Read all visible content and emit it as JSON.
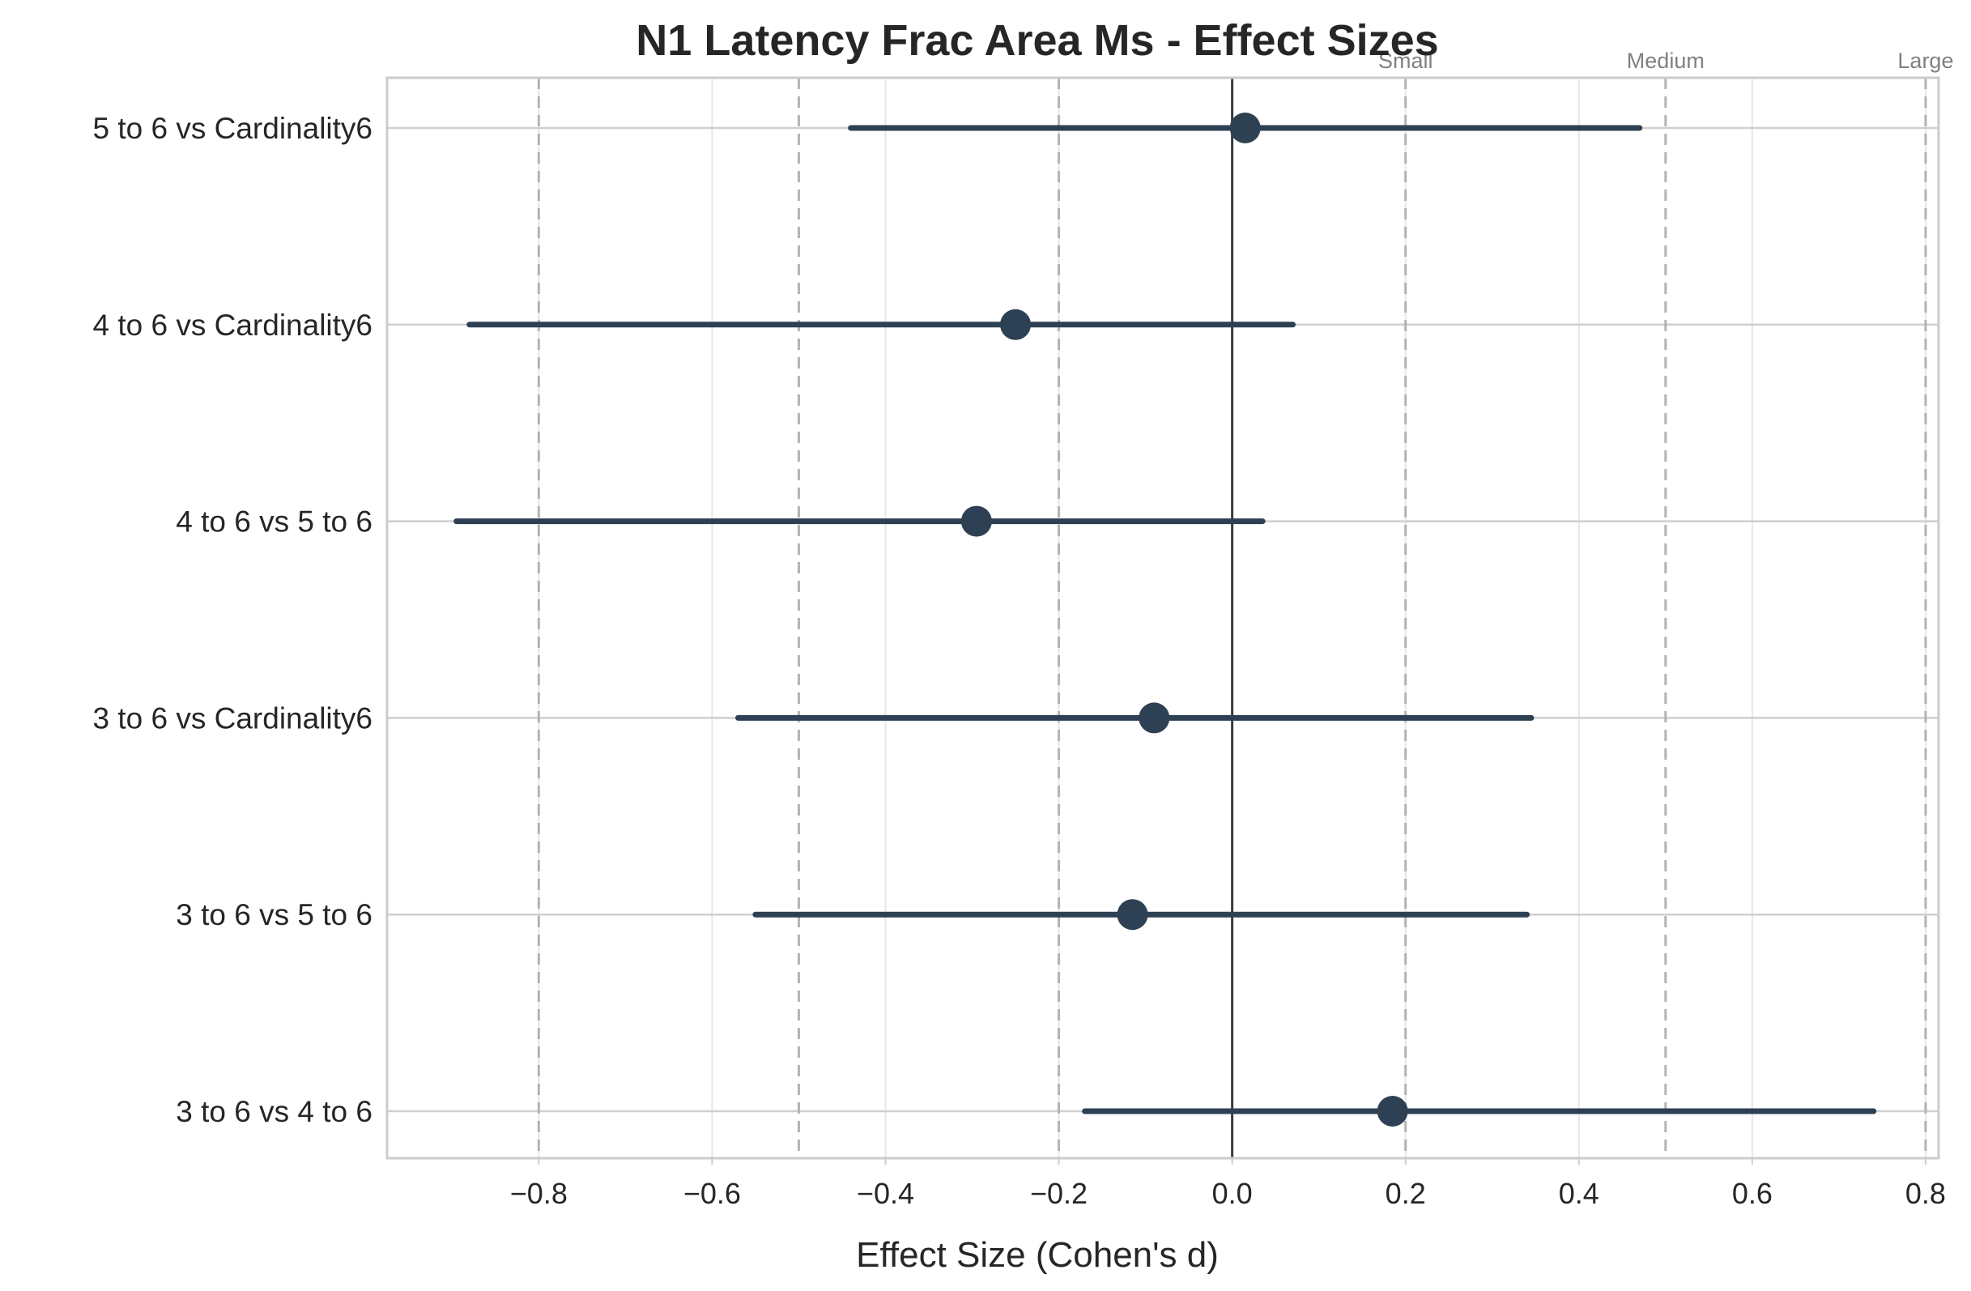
{
  "chart_data": {
    "type": "forest",
    "title": "N1 Latency Frac Area Ms - Effect Sizes",
    "xlabel": "Effect Size (Cohen's d)",
    "xlim": [
      -0.975,
      0.815
    ],
    "xticks": [
      -0.8,
      -0.6,
      -0.4,
      -0.2,
      0.0,
      0.2,
      0.4,
      0.6,
      0.8
    ],
    "xtick_labels": [
      "−0.8",
      "−0.6",
      "−0.4",
      "−0.2",
      "0.0",
      "0.2",
      "0.4",
      "0.6",
      "0.8"
    ],
    "grid": true,
    "zero_line": 0.0,
    "reference_lines": [
      {
        "value": -0.8,
        "label": ""
      },
      {
        "value": -0.5,
        "label": ""
      },
      {
        "value": -0.2,
        "label": ""
      },
      {
        "value": 0.2,
        "label": "Small"
      },
      {
        "value": 0.5,
        "label": "Medium"
      },
      {
        "value": 0.8,
        "label": "Large"
      }
    ],
    "rows": [
      {
        "label": "5 to 6 vs Cardinality6",
        "d": 0.015,
        "ci_low": -0.44,
        "ci_high": 0.47
      },
      {
        "label": "4 to 6 vs Cardinality6",
        "d": -0.25,
        "ci_low": -0.88,
        "ci_high": 0.07
      },
      {
        "label": "4 to 6 vs 5 to 6",
        "d": -0.295,
        "ci_low": -0.895,
        "ci_high": 0.035
      },
      {
        "label": "3 to 6 vs Cardinality6",
        "d": -0.09,
        "ci_low": -0.57,
        "ci_high": 0.345
      },
      {
        "label": "3 to 6 vs 5 to 6",
        "d": -0.115,
        "ci_low": -0.55,
        "ci_high": 0.34
      },
      {
        "label": "3 to 6 vs 4 to 6",
        "d": 0.185,
        "ci_low": -0.17,
        "ci_high": 0.74
      }
    ],
    "colors": {
      "marker": "#2e4053",
      "ref_line": "#b3b3b3",
      "zero_line": "#3a3a3a",
      "grid": "#e6e6e6",
      "axis": "#cccccc"
    }
  }
}
